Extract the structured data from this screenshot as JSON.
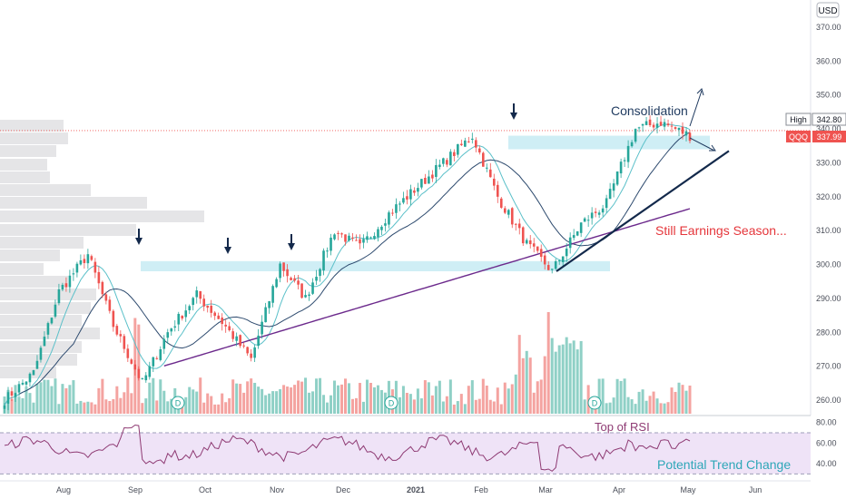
{
  "chart_data": {
    "type": "candlestick",
    "symbol": "QQQ",
    "currency": "USD",
    "last_price": "337.99",
    "high_label": "High",
    "high_price": "342.80",
    "x_axis_labels": [
      "Aug",
      "Sep",
      "Oct",
      "Nov",
      "Dec",
      "2021",
      "Feb",
      "Mar",
      "Apr",
      "May",
      "Jun"
    ],
    "price_ticks": [
      260,
      270,
      280,
      290,
      300,
      310,
      320,
      330,
      340,
      350,
      360,
      370
    ],
    "price_ticks_labels": [
      "260.00",
      "270.00",
      "280.00",
      "290.00",
      "300.00",
      "310.00",
      "320.00",
      "330.00",
      "340.00",
      "350.00",
      "360.00",
      "370.00"
    ],
    "price_range": [
      257,
      377
    ],
    "rsi_ticks": [
      "80.00",
      "60.00",
      "40.00"
    ],
    "rsi_range": [
      25,
      85
    ],
    "rsi_band": [
      30,
      70
    ],
    "dividend_marker": "D",
    "price_keypoints": [
      [
        "Aug",
        260
      ],
      [
        "Aug",
        268
      ],
      [
        "Sep",
        292
      ],
      [
        "Sep",
        303
      ],
      [
        "Sep",
        282
      ],
      [
        "Sep",
        265
      ],
      [
        "Oct",
        280
      ],
      [
        "Oct",
        291
      ],
      [
        "Oct",
        283
      ],
      [
        "Oct",
        272
      ],
      [
        "Nov",
        300
      ],
      [
        "Nov",
        290
      ],
      [
        "Dec",
        310
      ],
      [
        "Dec",
        305
      ],
      [
        "2021",
        315
      ],
      [
        "2021",
        322
      ],
      [
        "Feb",
        330
      ],
      [
        "Feb",
        338
      ],
      [
        "Mar",
        320
      ],
      [
        "Mar",
        306
      ],
      [
        "Mar",
        298
      ],
      [
        "Mar",
        312
      ],
      [
        "Apr",
        318
      ],
      [
        "Apr",
        340
      ],
      [
        "May",
        342
      ],
      [
        "May",
        338
      ]
    ],
    "annotations": {
      "consolidation": "Consolidation",
      "earnings": "Still Earnings Season...",
      "rsi_top": "Top of RSI",
      "trend_change": "Potential Trend Change"
    },
    "levels": {
      "resistance_low": [
        298,
        301
      ],
      "resistance_high": [
        334,
        338
      ]
    },
    "colors": {
      "up": "#26a69a",
      "down": "#ef5350",
      "volume_up": "#8fd0c6",
      "volume_down": "#f4a3a0",
      "ma_short": "#5bc0c9",
      "ma_mid": "#2d4a6e",
      "ma_long": "#6c2a8c",
      "trendline": "#13294b",
      "zone": "#cfeef5",
      "rsi_line": "#8e3a73",
      "rsi_band": "#efe3f7",
      "annotation_red": "#e5363b",
      "profile": "#e0e0e3"
    }
  }
}
